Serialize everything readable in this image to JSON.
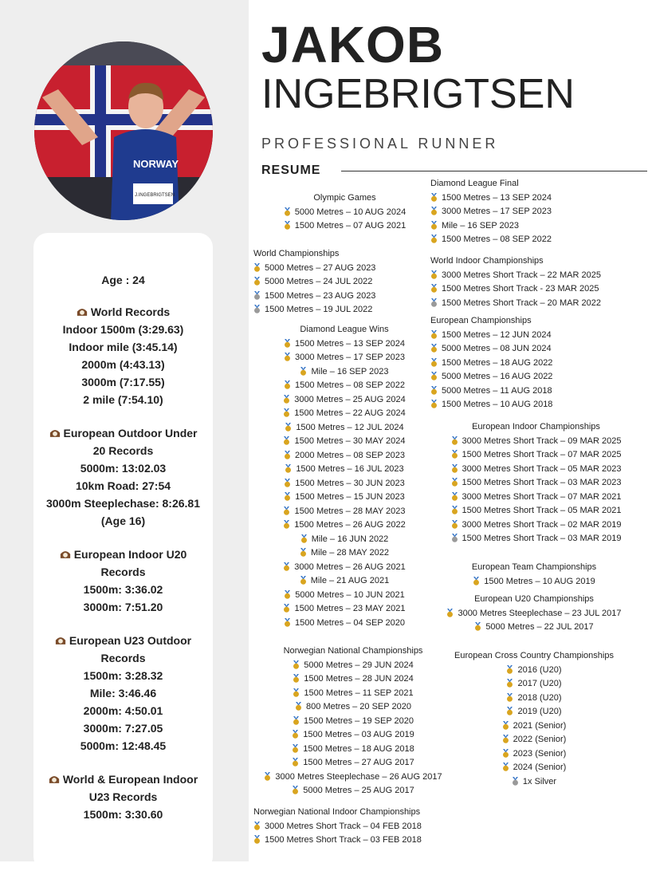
{
  "header": {
    "first_name": "JAKOB",
    "last_name": "INGEBRIGTSEN",
    "subtitle": "PROFESSIONAL RUNNER",
    "resume_label": "RESUME"
  },
  "photo": {
    "bib_text": "NORWAY",
    "bib_name": "J.INGEBRIGTSEN"
  },
  "profile": {
    "age": "Age : 24",
    "groups": [
      {
        "title": "World Records",
        "lines": [
          "Indoor 1500m (3:29.63)",
          "Indoor mile (3:45.14)",
          "2000m (4:43.13)",
          "3000m (7:17.55)",
          "2 mile (7:54.10)"
        ]
      },
      {
        "title": "European Outdoor Under",
        "title2": "20 Records",
        "lines": [
          "5000m: 13:02.03",
          "10km Road: 27:54",
          "3000m Steeplechase: 8:26.81",
          "(Age 16)"
        ]
      },
      {
        "title": "European Indoor U20",
        "title2": "Records",
        "lines": [
          "1500m: 3:36.02",
          "3000m: 7:51.20"
        ]
      },
      {
        "title": "European U23 Outdoor",
        "title2": "Records",
        "lines": [
          "1500m: 3:28.32",
          "Mile: 3:46.46",
          "2000m: 4:50.01",
          "3000m: 7:27.05",
          "5000m: 12:48.45"
        ]
      },
      {
        "title": "World & European Indoor",
        "title2": "U23 Records",
        "lines": [
          "1500m: 3:30.60"
        ]
      }
    ]
  },
  "left_sections": [
    {
      "title": "Olympic Games",
      "items": [
        [
          "gold",
          "5000 Metres – 10 AUG 2024"
        ],
        [
          "gold",
          "1500 Metres – 07 AUG 2021"
        ]
      ]
    },
    {
      "title": "World Championships",
      "items": [
        [
          "gold",
          "5000 Metres – 27 AUG 2023"
        ],
        [
          "gold",
          "5000 Metres – 24 JUL 2022"
        ],
        [
          "silver",
          "1500 Metres – 23 AUG 2023"
        ],
        [
          "silver",
          "1500 Metres – 19 JUL 2022"
        ]
      ]
    },
    {
      "title": "Diamond League Wins",
      "items": [
        [
          "gold",
          "1500 Metres – 13 SEP 2024"
        ],
        [
          "gold",
          "3000 Metres – 17 SEP 2023"
        ],
        [
          "gold",
          "Mile – 16 SEP 2023"
        ],
        [
          "gold",
          "1500 Metres – 08 SEP 2022"
        ],
        [
          "gold",
          "3000 Metres – 25 AUG 2024"
        ],
        [
          "gold",
          "1500 Metres – 22 AUG 2024"
        ],
        [
          "gold",
          "1500 Metres – 12 JUL 2024"
        ],
        [
          "gold",
          "1500 Metres – 30 MAY 2024"
        ],
        [
          "gold",
          "2000 Metres – 08 SEP 2023"
        ],
        [
          "gold",
          "1500 Metres – 16 JUL 2023"
        ],
        [
          "gold",
          "1500 Metres – 30 JUN 2023"
        ],
        [
          "gold",
          "1500 Metres – 15 JUN 2023"
        ],
        [
          "gold",
          "1500 Metres – 28 MAY 2023"
        ],
        [
          "gold",
          "1500 Metres – 26 AUG 2022"
        ],
        [
          "gold",
          "Mile – 16 JUN 2022"
        ],
        [
          "gold",
          "Mile – 28 MAY 2022"
        ],
        [
          "gold",
          "3000 Metres – 26 AUG 2021"
        ],
        [
          "gold",
          "Mile – 21 AUG 2021"
        ],
        [
          "gold",
          "5000 Metres – 10 JUN 2021"
        ],
        [
          "gold",
          "1500 Metres – 23 MAY 2021"
        ],
        [
          "gold",
          "1500 Metres – 04 SEP 2020"
        ]
      ]
    },
    {
      "title": "Norwegian National Championships",
      "items": [
        [
          "gold",
          "5000 Metres – 29 JUN 2024"
        ],
        [
          "gold",
          "1500 Metres – 28 JUN 2024"
        ],
        [
          "gold",
          "1500 Metres – 11 SEP 2021"
        ],
        [
          "gold",
          "800 Metres – 20 SEP 2020"
        ],
        [
          "gold",
          "1500 Metres – 19 SEP 2020"
        ],
        [
          "gold",
          "1500 Metres – 03 AUG 2019"
        ],
        [
          "gold",
          "1500 Metres – 18 AUG 2018"
        ],
        [
          "gold",
          "1500 Metres – 27 AUG 2017"
        ],
        [
          "gold",
          "3000 Metres Steeplechase – 26 AUG 2017"
        ],
        [
          "gold",
          "5000 Metres – 25 AUG 2017"
        ]
      ]
    },
    {
      "title": "Norwegian National Indoor Championships",
      "items": [
        [
          "gold",
          "3000 Metres Short Track – 04 FEB 2018"
        ],
        [
          "gold",
          "1500 Metres Short Track – 03 FEB 2018"
        ]
      ]
    }
  ],
  "right_sections": [
    {
      "title": "Diamond League Final",
      "items": [
        [
          "gold",
          "1500 Metres – 13 SEP 2024"
        ],
        [
          "gold",
          "3000 Metres – 17 SEP 2023"
        ],
        [
          "gold",
          "Mile – 16 SEP 2023"
        ],
        [
          "gold",
          "1500 Metres – 08 SEP 2022"
        ]
      ]
    },
    {
      "title": "World Indoor Championships",
      "items": [
        [
          "gold",
          "3000 Metres Short Track – 22 MAR 2025"
        ],
        [
          "gold",
          "1500 Metres Short Track - 23 MAR 2025"
        ],
        [
          "silver",
          "1500 Metres Short Track – 20 MAR 2022"
        ]
      ]
    },
    {
      "title": "European Championships",
      "items": [
        [
          "gold",
          "1500 Metres – 12 JUN 2024"
        ],
        [
          "gold",
          "5000 Metres – 08 JUN 2024"
        ],
        [
          "gold",
          "1500 Metres – 18 AUG 2022"
        ],
        [
          "gold",
          "5000 Metres – 16 AUG 2022"
        ],
        [
          "gold",
          "5000 Metres – 11 AUG 2018"
        ],
        [
          "gold",
          "1500 Metres – 10 AUG 2018"
        ]
      ]
    },
    {
      "title": "European Indoor Championships",
      "items": [
        [
          "gold",
          "3000 Metres Short Track – 09 MAR 2025"
        ],
        [
          "gold",
          "1500 Metres Short Track – 07 MAR 2025"
        ],
        [
          "gold",
          "3000 Metres Short Track – 05 MAR 2023"
        ],
        [
          "gold",
          "1500 Metres Short Track – 03 MAR 2023"
        ],
        [
          "gold",
          "3000 Metres Short Track – 07 MAR 2021"
        ],
        [
          "gold",
          "1500 Metres Short Track – 05 MAR 2021"
        ],
        [
          "gold",
          "3000 Metres Short Track – 02 MAR 2019"
        ],
        [
          "silver",
          "1500 Metres Short Track – 03 MAR 2019"
        ]
      ]
    },
    {
      "title": "European Team Championships",
      "items": [
        [
          "gold",
          "1500 Metres – 10 AUG 2019"
        ]
      ]
    },
    {
      "title": "European U20 Championships",
      "items": [
        [
          "gold",
          "3000 Metres Steeplechase – 23 JUL 2017"
        ],
        [
          "gold",
          "5000 Metres – 22 JUL 2017"
        ]
      ]
    },
    {
      "title": "European Cross Country Championships",
      "items": [
        [
          "gold",
          "2016 (U20)"
        ],
        [
          "gold",
          "2017 (U20)"
        ],
        [
          "gold",
          "2018 (U20)"
        ],
        [
          "gold",
          "2019 (U20)"
        ],
        [
          "gold",
          "2021 (Senior)"
        ],
        [
          "gold",
          "2022 (Senior)"
        ],
        [
          "gold",
          "2023 (Senior)"
        ],
        [
          "gold",
          "2024 (Senior)"
        ],
        [
          "silver",
          "1x Silver"
        ]
      ]
    }
  ],
  "colors": {
    "gold": "#d9a520",
    "silver": "#9a9a9a",
    "ribbon": "#3b78c8"
  }
}
